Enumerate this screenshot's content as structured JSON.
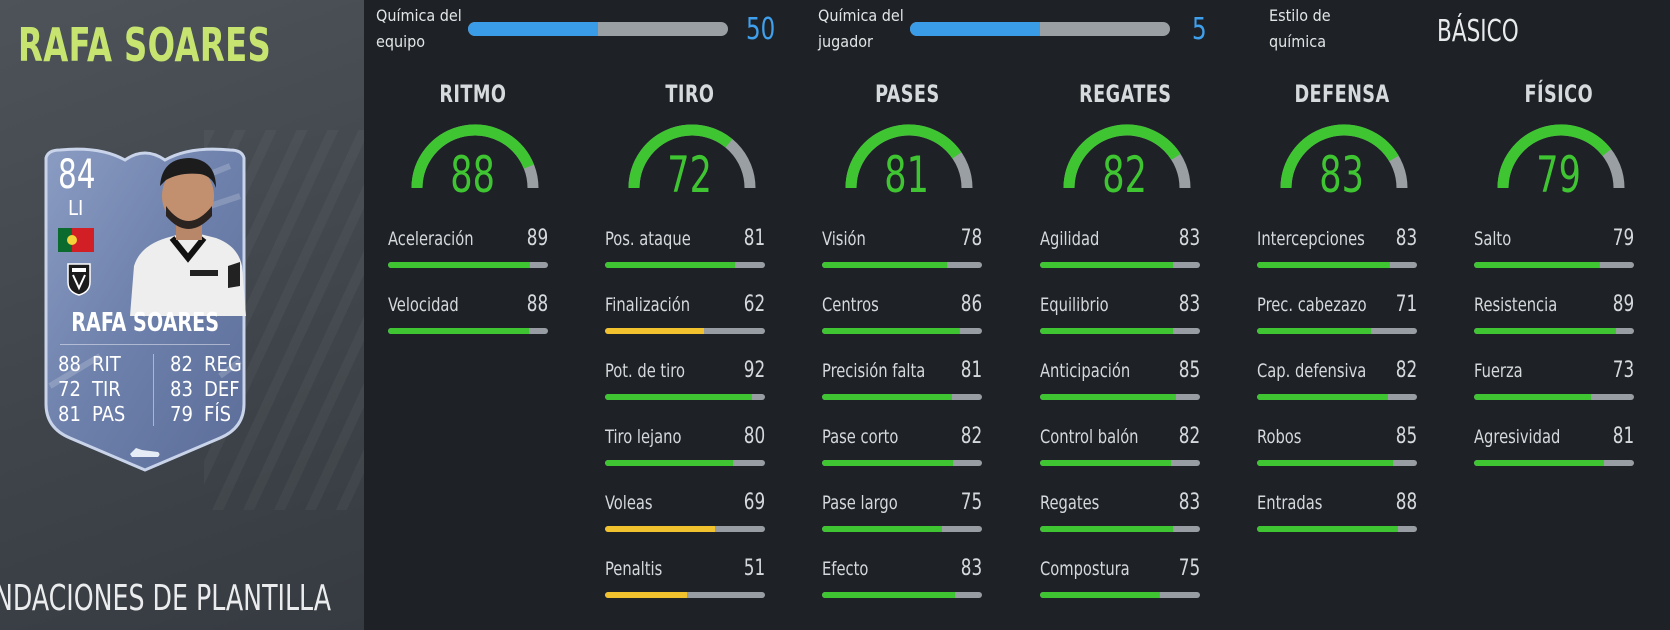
{
  "player": {
    "name": "RAFA SOARES"
  },
  "footer": {
    "label": "NDACIONES DE PLANTILLA"
  },
  "card": {
    "rating": "84",
    "position": "LI",
    "name": "RAFA SOARES",
    "flag": "portugal-flag",
    "club": "vitoria-guimaraes-crest",
    "stats_left": [
      {
        "v": "88",
        "k": "RIT"
      },
      {
        "v": "72",
        "k": "TIR"
      },
      {
        "v": "81",
        "k": "PAS"
      }
    ],
    "stats_right": [
      {
        "v": "82",
        "k": "REG"
      },
      {
        "v": "83",
        "k": "DEF"
      },
      {
        "v": "79",
        "k": "FÍS"
      }
    ]
  },
  "chemistry": {
    "team": {
      "label_1": "Química del",
      "label_2": "equipo",
      "value": "50",
      "fraction": 0.5
    },
    "player": {
      "label_1": "Química del",
      "label_2": "jugador",
      "value": "5",
      "fraction": 0.5
    },
    "style": {
      "label_1": "Estilo de",
      "label_2": "química",
      "value": "BÁSICO"
    }
  },
  "colors": {
    "green": "#3fc532",
    "yellow": "#f2c12e",
    "blue": "#3a9be6",
    "name_green": "#c6e46f"
  },
  "categories": [
    {
      "title": "RITMO",
      "value": 88,
      "subs": [
        {
          "name": "Aceleración",
          "value": 89
        },
        {
          "name": "Velocidad",
          "value": 88
        }
      ]
    },
    {
      "title": "TIRO",
      "value": 72,
      "subs": [
        {
          "name": "Pos. ataque",
          "value": 81
        },
        {
          "name": "Finalización",
          "value": 62
        },
        {
          "name": "Pot. de tiro",
          "value": 92
        },
        {
          "name": "Tiro lejano",
          "value": 80
        },
        {
          "name": "Voleas",
          "value": 69
        },
        {
          "name": "Penaltis",
          "value": 51
        }
      ]
    },
    {
      "title": "PASES",
      "value": 81,
      "subs": [
        {
          "name": "Visión",
          "value": 78
        },
        {
          "name": "Centros",
          "value": 86
        },
        {
          "name": "Precisión falta",
          "value": 81
        },
        {
          "name": "Pase corto",
          "value": 82
        },
        {
          "name": "Pase largo",
          "value": 75
        },
        {
          "name": "Efecto",
          "value": 83
        }
      ]
    },
    {
      "title": "REGATES",
      "value": 82,
      "subs": [
        {
          "name": "Agilidad",
          "value": 83
        },
        {
          "name": "Equilibrio",
          "value": 83
        },
        {
          "name": "Anticipación",
          "value": 85
        },
        {
          "name": "Control balón",
          "value": 82
        },
        {
          "name": "Regates",
          "value": 83
        },
        {
          "name": "Compostura",
          "value": 75
        }
      ]
    },
    {
      "title": "DEFENSA",
      "value": 83,
      "subs": [
        {
          "name": "Intercepciones",
          "value": 83
        },
        {
          "name": "Prec. cabezazo",
          "value": 71
        },
        {
          "name": "Cap. defensiva",
          "value": 82
        },
        {
          "name": "Robos",
          "value": 85
        },
        {
          "name": "Entradas",
          "value": 88
        }
      ]
    },
    {
      "title": "FÍSICO",
      "value": 79,
      "subs": [
        {
          "name": "Salto",
          "value": 79
        },
        {
          "name": "Resistencia",
          "value": 89
        },
        {
          "name": "Fuerza",
          "value": 73
        },
        {
          "name": "Agresividad",
          "value": 81
        }
      ]
    }
  ]
}
